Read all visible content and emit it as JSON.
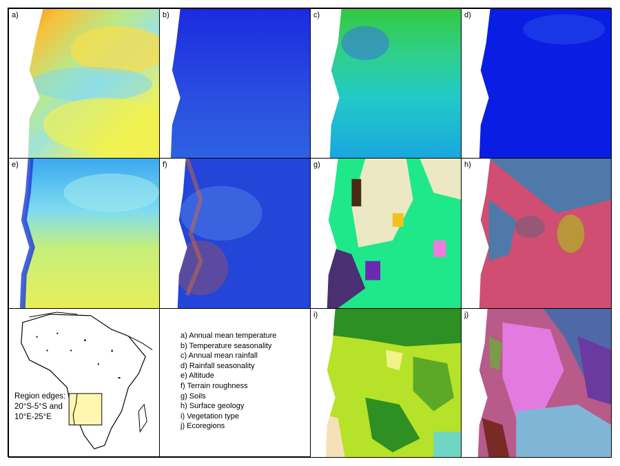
{
  "panels": {
    "a": "a)",
    "b": "b)",
    "c": "c)",
    "d": "d)",
    "e": "e)",
    "f": "f)",
    "g": "g)",
    "h": "h)",
    "i": "i)",
    "j": "j)"
  },
  "legend": [
    "a) Annual mean temperature",
    "b) Temperature seasonality",
    "c) Annual mean rainfall",
    "d) Rainfall seasonality",
    "e) Altitude",
    "f) Terrain roughness",
    "g) Soils",
    "h) Surface geology",
    "i) Vegetation type",
    "j) Ecoregions"
  ],
  "region_note": [
    "Region edges:",
    "20°S-5°S and",
    "10°E-25°E"
  ],
  "colors": {
    "ocean": "#ffffff",
    "highlight_box": "#fff6b0",
    "outline": "#000000"
  }
}
